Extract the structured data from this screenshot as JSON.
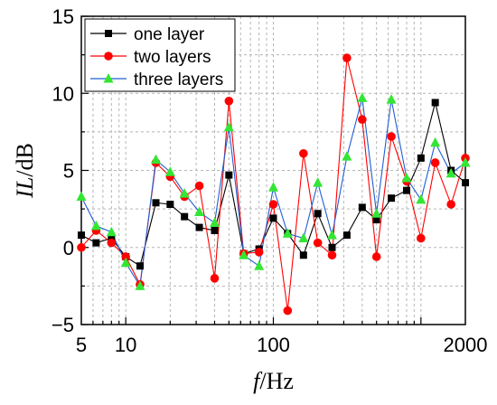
{
  "chart_data": {
    "type": "line",
    "xscale": "log",
    "xlim": [
      5,
      2000
    ],
    "ylim": [
      -5,
      15
    ],
    "xticks": [
      {
        "value": 5,
        "label": "5"
      },
      {
        "value": 10,
        "label": "10"
      },
      {
        "value": 100,
        "label": "100"
      },
      {
        "value": 2000,
        "label": "2000"
      }
    ],
    "yticks": [
      -5,
      0,
      5,
      10,
      15
    ],
    "ytick_labels": [
      "−5",
      "0",
      "5",
      "10",
      "15"
    ],
    "grid": "dashed",
    "legend_position": "top-left",
    "xlabel": {
      "italic": "f",
      "unit": "/Hz"
    },
    "ylabel": {
      "italic": "IL",
      "unit": "/dB"
    },
    "x": [
      5,
      6.3,
      8,
      10,
      12.5,
      16,
      20,
      25,
      31.5,
      40,
      50,
      63,
      80,
      100,
      125,
      160,
      200,
      250,
      315,
      400,
      500,
      630,
      800,
      1000,
      1250,
      1600,
      2000
    ],
    "series": [
      {
        "name": "one   layer",
        "color": "#000000",
        "marker": "square",
        "values": [
          0.8,
          0.3,
          0.6,
          -0.6,
          -1.2,
          2.9,
          2.8,
          2.0,
          1.3,
          1.1,
          4.7,
          -0.4,
          -0.1,
          1.9,
          0.9,
          -0.5,
          2.2,
          0.0,
          0.8,
          2.6,
          1.8,
          3.2,
          3.7,
          5.8,
          9.4,
          5.0,
          4.2
        ]
      },
      {
        "name": "two   layers",
        "color": "#ff0000",
        "marker": "circle",
        "values": [
          0.0,
          1.1,
          0.3,
          -0.6,
          -2.4,
          5.5,
          4.6,
          3.3,
          4.0,
          -2.0,
          9.5,
          -0.4,
          -0.3,
          2.8,
          -4.1,
          6.1,
          0.3,
          -0.5,
          12.3,
          8.3,
          -0.6,
          7.2,
          4.3,
          0.6,
          5.5,
          2.8,
          5.8
        ]
      },
      {
        "name": "three layers",
        "color": "#1f5fd4",
        "marker": "triangle",
        "values": [
          3.3,
          1.4,
          1.0,
          -1.0,
          -2.5,
          5.7,
          4.9,
          3.5,
          2.3,
          1.6,
          7.8,
          -0.5,
          -1.2,
          3.9,
          0.9,
          0.6,
          4.2,
          0.8,
          5.9,
          9.7,
          2.2,
          9.6,
          4.5,
          3.1,
          6.8,
          4.8,
          5.5
        ]
      }
    ]
  }
}
